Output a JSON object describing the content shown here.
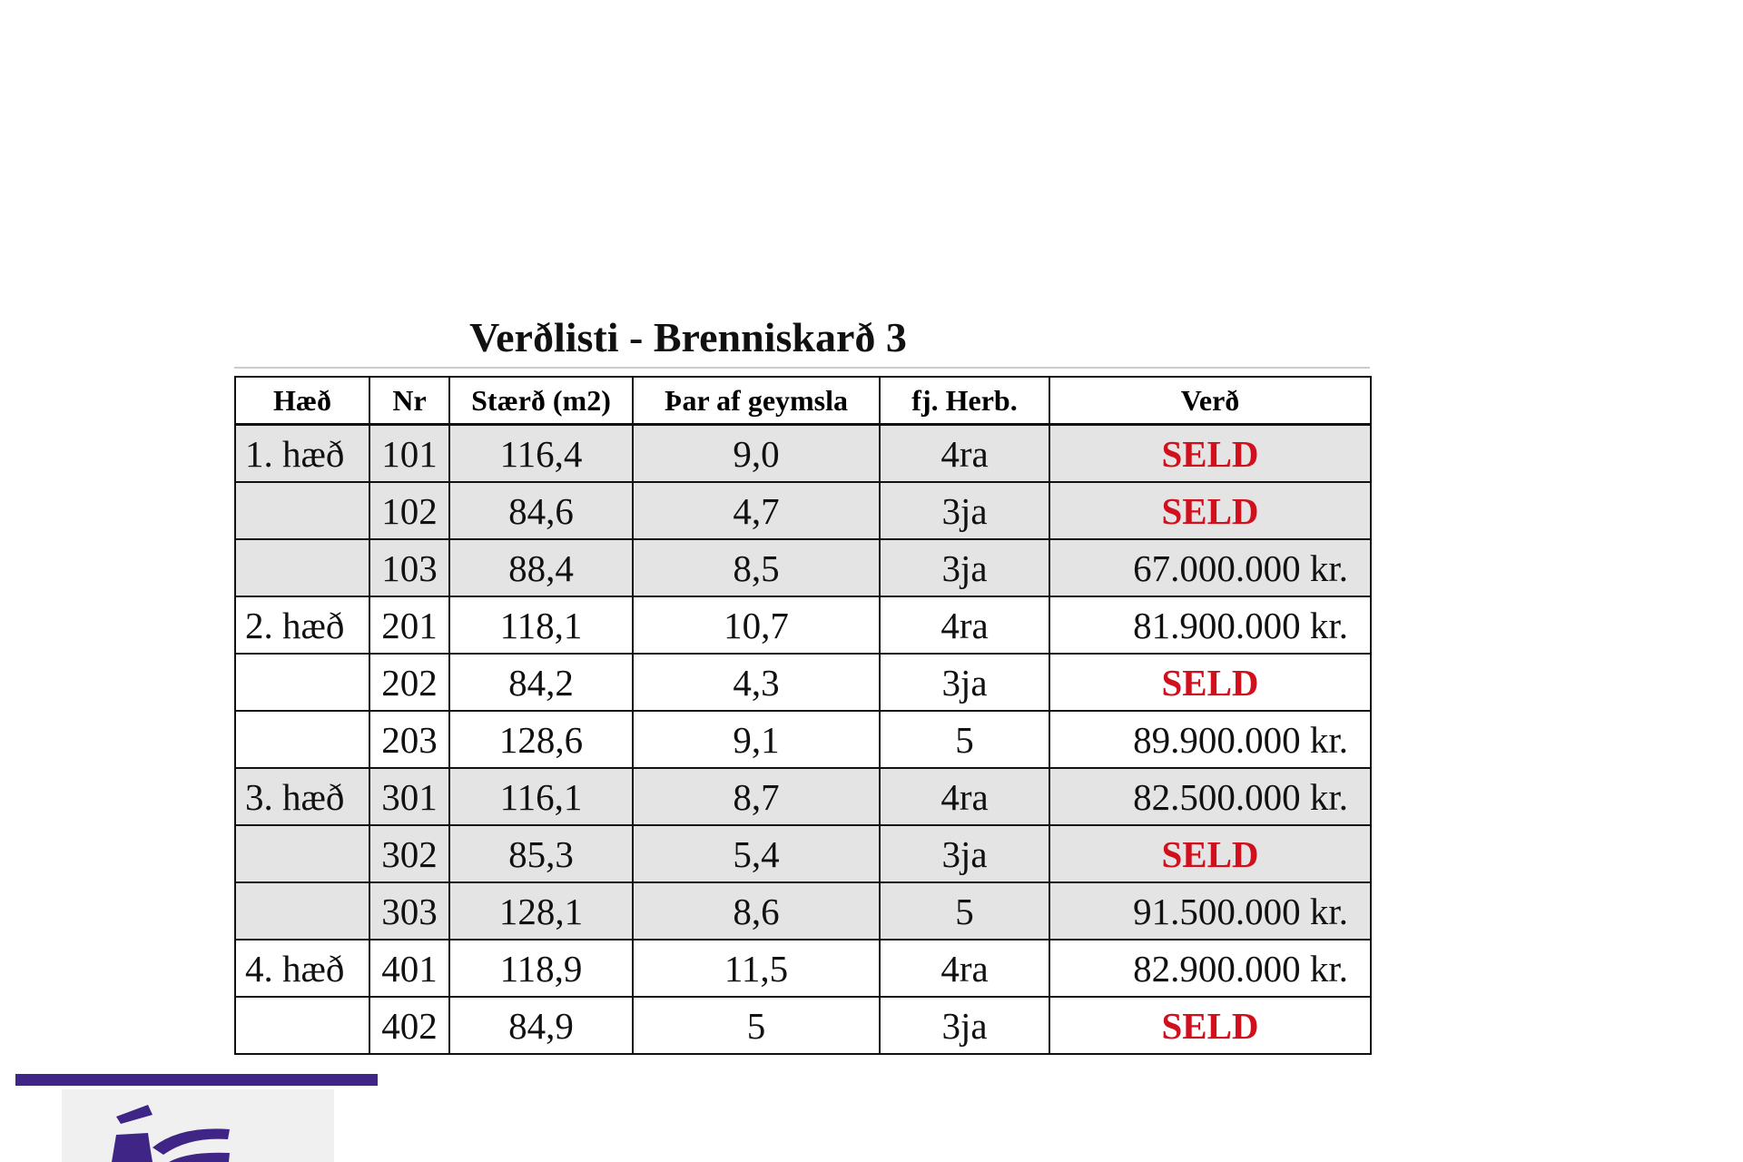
{
  "title": "Verðlisti - Brenniskarð 3",
  "columns": [
    "Hæð",
    "Nr",
    "Stærð (m2)",
    "Þar af geymsla",
    "fj. Herb.",
    "Verð"
  ],
  "rows": [
    {
      "floor": "1. hæð",
      "nr": "101",
      "size": "116,4",
      "storage": "9,0",
      "rooms": "4ra",
      "price": "SELD",
      "sold": true,
      "shaded": true
    },
    {
      "floor": "",
      "nr": "102",
      "size": "84,6",
      "storage": "4,7",
      "rooms": "3ja",
      "price": "SELD",
      "sold": true,
      "shaded": true
    },
    {
      "floor": "",
      "nr": "103",
      "size": "88,4",
      "storage": "8,5",
      "rooms": "3ja",
      "price": "67.000.000 kr.",
      "sold": false,
      "shaded": true
    },
    {
      "floor": "2. hæð",
      "nr": "201",
      "size": "118,1",
      "storage": "10,7",
      "rooms": "4ra",
      "price": "81.900.000 kr.",
      "sold": false,
      "shaded": false
    },
    {
      "floor": "",
      "nr": "202",
      "size": "84,2",
      "storage": "4,3",
      "rooms": "3ja",
      "price": "SELD",
      "sold": true,
      "shaded": false
    },
    {
      "floor": "",
      "nr": "203",
      "size": "128,6",
      "storage": "9,1",
      "rooms": "5",
      "price": "89.900.000 kr.",
      "sold": false,
      "shaded": false
    },
    {
      "floor": "3. hæð",
      "nr": "301",
      "size": "116,1",
      "storage": "8,7",
      "rooms": "4ra",
      "price": "82.500.000 kr.",
      "sold": false,
      "shaded": true
    },
    {
      "floor": "",
      "nr": "302",
      "size": "85,3",
      "storage": "5,4",
      "rooms": "3ja",
      "price": "SELD",
      "sold": true,
      "shaded": true
    },
    {
      "floor": "",
      "nr": "303",
      "size": "128,1",
      "storage": "8,6",
      "rooms": "5",
      "price": "91.500.000 kr.",
      "sold": false,
      "shaded": true
    },
    {
      "floor": "4. hæð",
      "nr": "401",
      "size": "118,9",
      "storage": "11,5",
      "rooms": "4ra",
      "price": "82.900.000 kr.",
      "sold": false,
      "shaded": false
    },
    {
      "floor": "",
      "nr": "402",
      "size": "84,9",
      "storage": "5",
      "rooms": "3ja",
      "price": "SELD",
      "sold": true,
      "shaded": false
    }
  ],
  "colors": {
    "sold": "#d0101c",
    "brand_purple": "#3f2585",
    "row_shade": "#e4e4e4"
  },
  "logo": {
    "icon": "brand-logo-icon"
  }
}
